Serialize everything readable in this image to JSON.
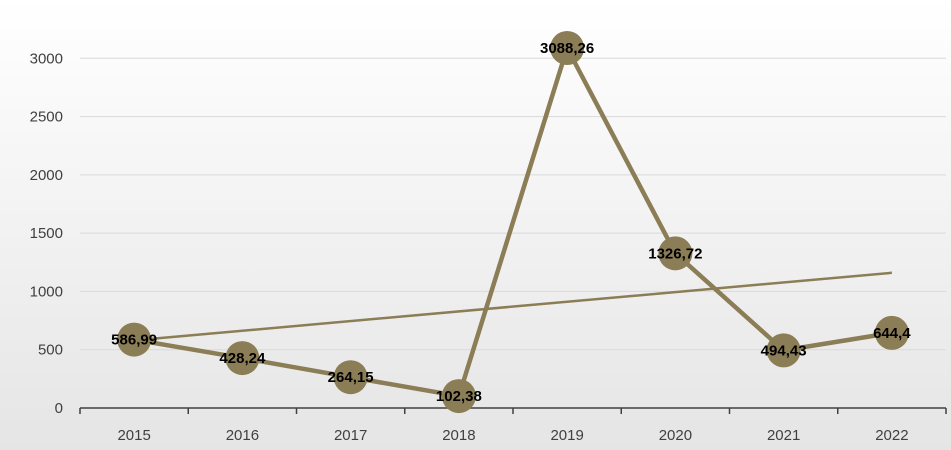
{
  "chart_data": {
    "type": "line",
    "title": "",
    "xlabel": "",
    "ylabel": "",
    "categories": [
      "2015",
      "2016",
      "2017",
      "2018",
      "2019",
      "2020",
      "2021",
      "2022"
    ],
    "series": [
      {
        "values": [
          586.99,
          428.24,
          264.15,
          102.38,
          3088.26,
          1326.72,
          494.43,
          644.4
        ],
        "data_labels": [
          "586,99",
          "428,24",
          "264,15",
          "102,38",
          "3088,26",
          "1326,72",
          "494,43",
          "644,4"
        ]
      }
    ],
    "trendline": {
      "type": "linear",
      "start_value": 580,
      "end_value": 1160
    },
    "ylim": [
      0,
      3500
    ],
    "yticks": [
      "0",
      "500",
      "1000",
      "1500",
      "2000",
      "2500",
      "3000"
    ],
    "ytick_values": [
      0,
      500,
      1000,
      1500,
      2000,
      2500,
      3000
    ],
    "grid": true,
    "legend": "none",
    "colors": {
      "line": "#8B7D55",
      "marker": "#8B7D55",
      "trendline": "#8B7D55",
      "grid": "#d9d9d9",
      "axis": "#404040",
      "background_top": "#ffffff",
      "background_bottom": "#e5e5e5"
    }
  }
}
